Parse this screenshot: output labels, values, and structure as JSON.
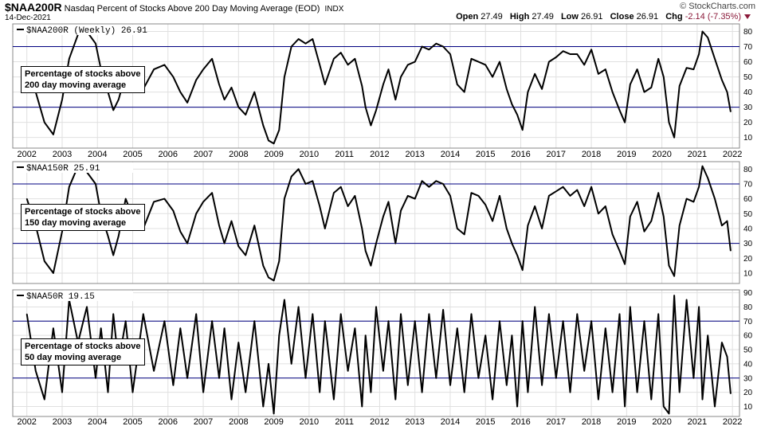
{
  "header": {
    "symbol": "$NAA200R",
    "description": "Nasdaq Percent of Stocks Above 200 Day Moving Average (EOD)",
    "exchange": "INDX",
    "date": "14-Dec-2021",
    "brand": "© StockCharts.com",
    "open_label": "Open",
    "open": "27.49",
    "high_label": "High",
    "high": "27.49",
    "low_label": "Low",
    "low": "26.91",
    "close_label": "Close",
    "close": "26.91",
    "chg_label": "Chg",
    "chg": "-2.14 (-7.35%)",
    "chg_color": "#8b1a3a"
  },
  "chart_data": [
    {
      "type": "line",
      "series_label": "$NAA200R (Weekly) 26.91",
      "annotation": [
        "Percentage of stocks above",
        "200 day moving average"
      ],
      "x_tick_labels": [
        "2002",
        "2003",
        "2004",
        "2005",
        "2006",
        "2007",
        "2008",
        "2009",
        "2010",
        "2011",
        "2012",
        "2013",
        "2014",
        "2015",
        "2016",
        "2017",
        "2018",
        "2019",
        "2020",
        "2021",
        "2022"
      ],
      "y_ticks": [
        10,
        20,
        30,
        40,
        50,
        60,
        70,
        80
      ],
      "ylim": [
        3,
        85
      ],
      "reference_lines": [
        30,
        70
      ],
      "x": [
        2002.0,
        2002.25,
        2002.5,
        2002.75,
        2003.0,
        2003.2,
        2003.45,
        2003.7,
        2003.95,
        2004.1,
        2004.3,
        2004.45,
        2004.6,
        2004.8,
        2005.0,
        2005.3,
        2005.6,
        2005.9,
        2006.15,
        2006.35,
        2006.55,
        2006.8,
        2007.0,
        2007.25,
        2007.45,
        2007.6,
        2007.8,
        2008.0,
        2008.2,
        2008.45,
        2008.7,
        2008.85,
        2009.0,
        2009.15,
        2009.3,
        2009.5,
        2009.7,
        2009.9,
        2010.1,
        2010.3,
        2010.45,
        2010.7,
        2010.9,
        2011.1,
        2011.3,
        2011.5,
        2011.6,
        2011.75,
        2011.9,
        2012.1,
        2012.25,
        2012.45,
        2012.6,
        2012.8,
        2013.0,
        2013.2,
        2013.4,
        2013.6,
        2013.8,
        2014.0,
        2014.2,
        2014.4,
        2014.6,
        2014.8,
        2015.0,
        2015.2,
        2015.4,
        2015.6,
        2015.75,
        2015.9,
        2016.05,
        2016.2,
        2016.4,
        2016.6,
        2016.8,
        2017.0,
        2017.2,
        2017.4,
        2017.6,
        2017.8,
        2018.0,
        2018.2,
        2018.4,
        2018.6,
        2018.8,
        2018.95,
        2019.1,
        2019.3,
        2019.5,
        2019.7,
        2019.9,
        2020.05,
        2020.2,
        2020.35,
        2020.5,
        2020.7,
        2020.9,
        2021.05,
        2021.15,
        2021.3,
        2021.5,
        2021.7,
        2021.85,
        2021.95
      ],
      "y": [
        55,
        40,
        20,
        12,
        35,
        62,
        78,
        80,
        72,
        55,
        40,
        28,
        35,
        52,
        46,
        42,
        55,
        58,
        50,
        40,
        33,
        48,
        55,
        62,
        45,
        35,
        43,
        30,
        25,
        40,
        18,
        8,
        6,
        15,
        50,
        70,
        75,
        72,
        75,
        58,
        45,
        62,
        66,
        58,
        62,
        44,
        30,
        18,
        28,
        45,
        55,
        35,
        50,
        58,
        60,
        70,
        68,
        72,
        70,
        65,
        45,
        40,
        62,
        60,
        58,
        50,
        60,
        42,
        32,
        25,
        15,
        40,
        52,
        42,
        60,
        63,
        67,
        65,
        65,
        58,
        68,
        52,
        55,
        40,
        28,
        20,
        45,
        55,
        40,
        43,
        62,
        50,
        20,
        10,
        44,
        56,
        55,
        65,
        80,
        76,
        62,
        48,
        40,
        27
      ]
    },
    {
      "type": "line",
      "series_label": "$NAA150R 25.91",
      "annotation": [
        "Percentage of stocks above",
        "150 day moving average"
      ],
      "x_tick_labels": [],
      "y_ticks": [
        10,
        20,
        30,
        40,
        50,
        60,
        70,
        80
      ],
      "ylim": [
        3,
        85
      ],
      "reference_lines": [
        30,
        70
      ],
      "x": [
        2002.0,
        2002.25,
        2002.5,
        2002.75,
        2003.0,
        2003.2,
        2003.45,
        2003.7,
        2003.95,
        2004.1,
        2004.3,
        2004.45,
        2004.6,
        2004.8,
        2005.0,
        2005.3,
        2005.6,
        2005.9,
        2006.15,
        2006.35,
        2006.55,
        2006.8,
        2007.0,
        2007.25,
        2007.45,
        2007.6,
        2007.8,
        2008.0,
        2008.2,
        2008.45,
        2008.7,
        2008.85,
        2009.0,
        2009.15,
        2009.3,
        2009.5,
        2009.7,
        2009.9,
        2010.1,
        2010.3,
        2010.45,
        2010.7,
        2010.9,
        2011.1,
        2011.3,
        2011.5,
        2011.6,
        2011.75,
        2011.9,
        2012.1,
        2012.25,
        2012.45,
        2012.6,
        2012.8,
        2013.0,
        2013.2,
        2013.4,
        2013.6,
        2013.8,
        2014.0,
        2014.2,
        2014.4,
        2014.6,
        2014.8,
        2015.0,
        2015.2,
        2015.4,
        2015.6,
        2015.75,
        2015.9,
        2016.05,
        2016.2,
        2016.4,
        2016.6,
        2016.8,
        2017.0,
        2017.2,
        2017.4,
        2017.6,
        2017.8,
        2018.0,
        2018.2,
        2018.4,
        2018.6,
        2018.8,
        2018.95,
        2019.1,
        2019.3,
        2019.5,
        2019.7,
        2019.9,
        2020.05,
        2020.2,
        2020.35,
        2020.5,
        2020.7,
        2020.9,
        2021.05,
        2021.15,
        2021.3,
        2021.5,
        2021.7,
        2021.85,
        2021.95
      ],
      "y": [
        60,
        42,
        18,
        10,
        38,
        68,
        82,
        78,
        70,
        50,
        35,
        22,
        35,
        60,
        48,
        40,
        58,
        60,
        52,
        38,
        30,
        50,
        58,
        64,
        42,
        30,
        45,
        28,
        22,
        42,
        15,
        7,
        5,
        18,
        60,
        75,
        80,
        70,
        72,
        55,
        40,
        64,
        68,
        55,
        62,
        40,
        25,
        15,
        30,
        48,
        58,
        30,
        52,
        62,
        60,
        72,
        68,
        72,
        70,
        62,
        40,
        36,
        64,
        62,
        56,
        45,
        62,
        40,
        30,
        22,
        12,
        42,
        55,
        40,
        62,
        65,
        68,
        62,
        66,
        55,
        68,
        50,
        55,
        36,
        25,
        16,
        48,
        58,
        38,
        45,
        64,
        48,
        15,
        8,
        42,
        60,
        58,
        68,
        82,
        74,
        60,
        42,
        45,
        25
      ]
    },
    {
      "type": "line",
      "series_label": "$NAA50R 19.15",
      "annotation": [
        "Percentage of stocks above",
        "50 day moving average"
      ],
      "x_tick_labels": [
        "2002",
        "2003",
        "2004",
        "2005",
        "2006",
        "2007",
        "2008",
        "2009",
        "2010",
        "2011",
        "2012",
        "2013",
        "2014",
        "2015",
        "2016",
        "2017",
        "2018",
        "2019",
        "2020",
        "2021",
        "2022"
      ],
      "y_ticks": [
        10,
        20,
        30,
        40,
        50,
        60,
        70,
        80,
        90
      ],
      "ylim": [
        3,
        92
      ],
      "reference_lines": [
        30,
        70
      ],
      "x": [
        2002.0,
        2002.25,
        2002.5,
        2002.75,
        2003.0,
        2003.2,
        2003.45,
        2003.7,
        2003.95,
        2004.1,
        2004.3,
        2004.45,
        2004.6,
        2004.8,
        2005.0,
        2005.3,
        2005.6,
        2005.9,
        2006.15,
        2006.35,
        2006.55,
        2006.8,
        2007.0,
        2007.25,
        2007.45,
        2007.6,
        2007.8,
        2008.0,
        2008.2,
        2008.45,
        2008.7,
        2008.85,
        2009.0,
        2009.15,
        2009.3,
        2009.5,
        2009.7,
        2009.9,
        2010.1,
        2010.3,
        2010.45,
        2010.7,
        2010.9,
        2011.1,
        2011.3,
        2011.5,
        2011.6,
        2011.75,
        2011.9,
        2012.1,
        2012.25,
        2012.45,
        2012.6,
        2012.8,
        2013.0,
        2013.2,
        2013.4,
        2013.6,
        2013.8,
        2014.0,
        2014.2,
        2014.4,
        2014.6,
        2014.8,
        2015.0,
        2015.2,
        2015.4,
        2015.6,
        2015.75,
        2015.9,
        2016.05,
        2016.2,
        2016.4,
        2016.6,
        2016.8,
        2017.0,
        2017.2,
        2017.4,
        2017.6,
        2017.8,
        2018.0,
        2018.2,
        2018.4,
        2018.6,
        2018.8,
        2018.95,
        2019.1,
        2019.3,
        2019.5,
        2019.7,
        2019.9,
        2020.05,
        2020.2,
        2020.35,
        2020.5,
        2020.7,
        2020.9,
        2021.05,
        2021.15,
        2021.3,
        2021.5,
        2021.7,
        2021.85,
        2021.95
      ],
      "y": [
        75,
        35,
        15,
        65,
        20,
        85,
        55,
        80,
        30,
        65,
        20,
        75,
        40,
        70,
        20,
        75,
        35,
        70,
        25,
        65,
        30,
        75,
        20,
        70,
        30,
        65,
        15,
        55,
        20,
        70,
        10,
        40,
        5,
        60,
        85,
        40,
        80,
        30,
        75,
        20,
        70,
        15,
        75,
        35,
        65,
        10,
        60,
        20,
        80,
        35,
        70,
        15,
        75,
        25,
        70,
        20,
        75,
        30,
        78,
        25,
        65,
        20,
        75,
        30,
        60,
        15,
        70,
        25,
        60,
        10,
        70,
        20,
        80,
        25,
        75,
        30,
        70,
        20,
        75,
        35,
        70,
        15,
        65,
        20,
        75,
        10,
        80,
        20,
        70,
        15,
        75,
        10,
        5,
        88,
        20,
        85,
        30,
        80,
        15,
        60,
        10,
        55,
        45,
        19
      ]
    }
  ]
}
